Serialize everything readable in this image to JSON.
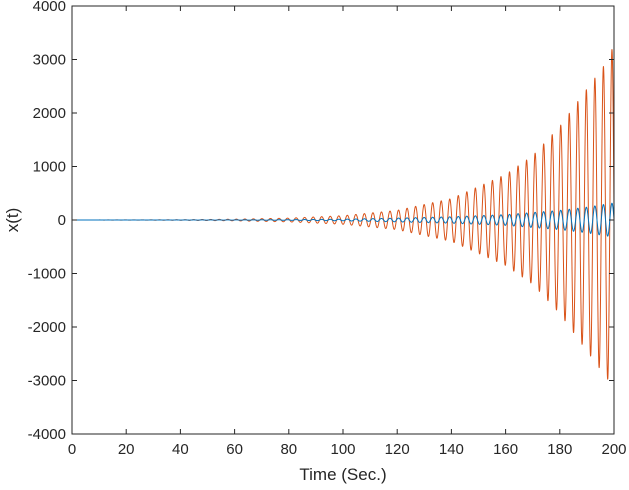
{
  "chart_data": {
    "type": "line",
    "title": "",
    "xlabel": "Time (Sec.)",
    "ylabel": "x(t)",
    "xlim": [
      0,
      200
    ],
    "ylim": [
      -4000,
      4000
    ],
    "xticks": [
      0,
      20,
      40,
      60,
      80,
      100,
      120,
      140,
      160,
      180,
      200
    ],
    "yticks": [
      -4000,
      -3000,
      -2000,
      -1000,
      0,
      1000,
      2000,
      3000,
      4000
    ],
    "grid": false,
    "box": true,
    "oscillation_period_sec": 3.15,
    "series": [
      {
        "color": "#0072BD",
        "envelope": [
          [
            0,
            0
          ],
          [
            60,
            2
          ],
          [
            80,
            6
          ],
          [
            100,
            15
          ],
          [
            120,
            35
          ],
          [
            140,
            60
          ],
          [
            160,
            100
          ],
          [
            180,
            180
          ],
          [
            190,
            240
          ],
          [
            200,
            320
          ]
        ]
      },
      {
        "color": "#D95319",
        "envelope": [
          [
            0,
            0
          ],
          [
            40,
            5
          ],
          [
            60,
            15
          ],
          [
            80,
            35
          ],
          [
            100,
            80
          ],
          [
            120,
            180
          ],
          [
            140,
            400
          ],
          [
            160,
            850
          ],
          [
            170,
            1200
          ],
          [
            180,
            1750
          ],
          [
            190,
            2450
          ],
          [
            198,
            3000
          ],
          [
            200,
            3300
          ]
        ]
      }
    ]
  }
}
